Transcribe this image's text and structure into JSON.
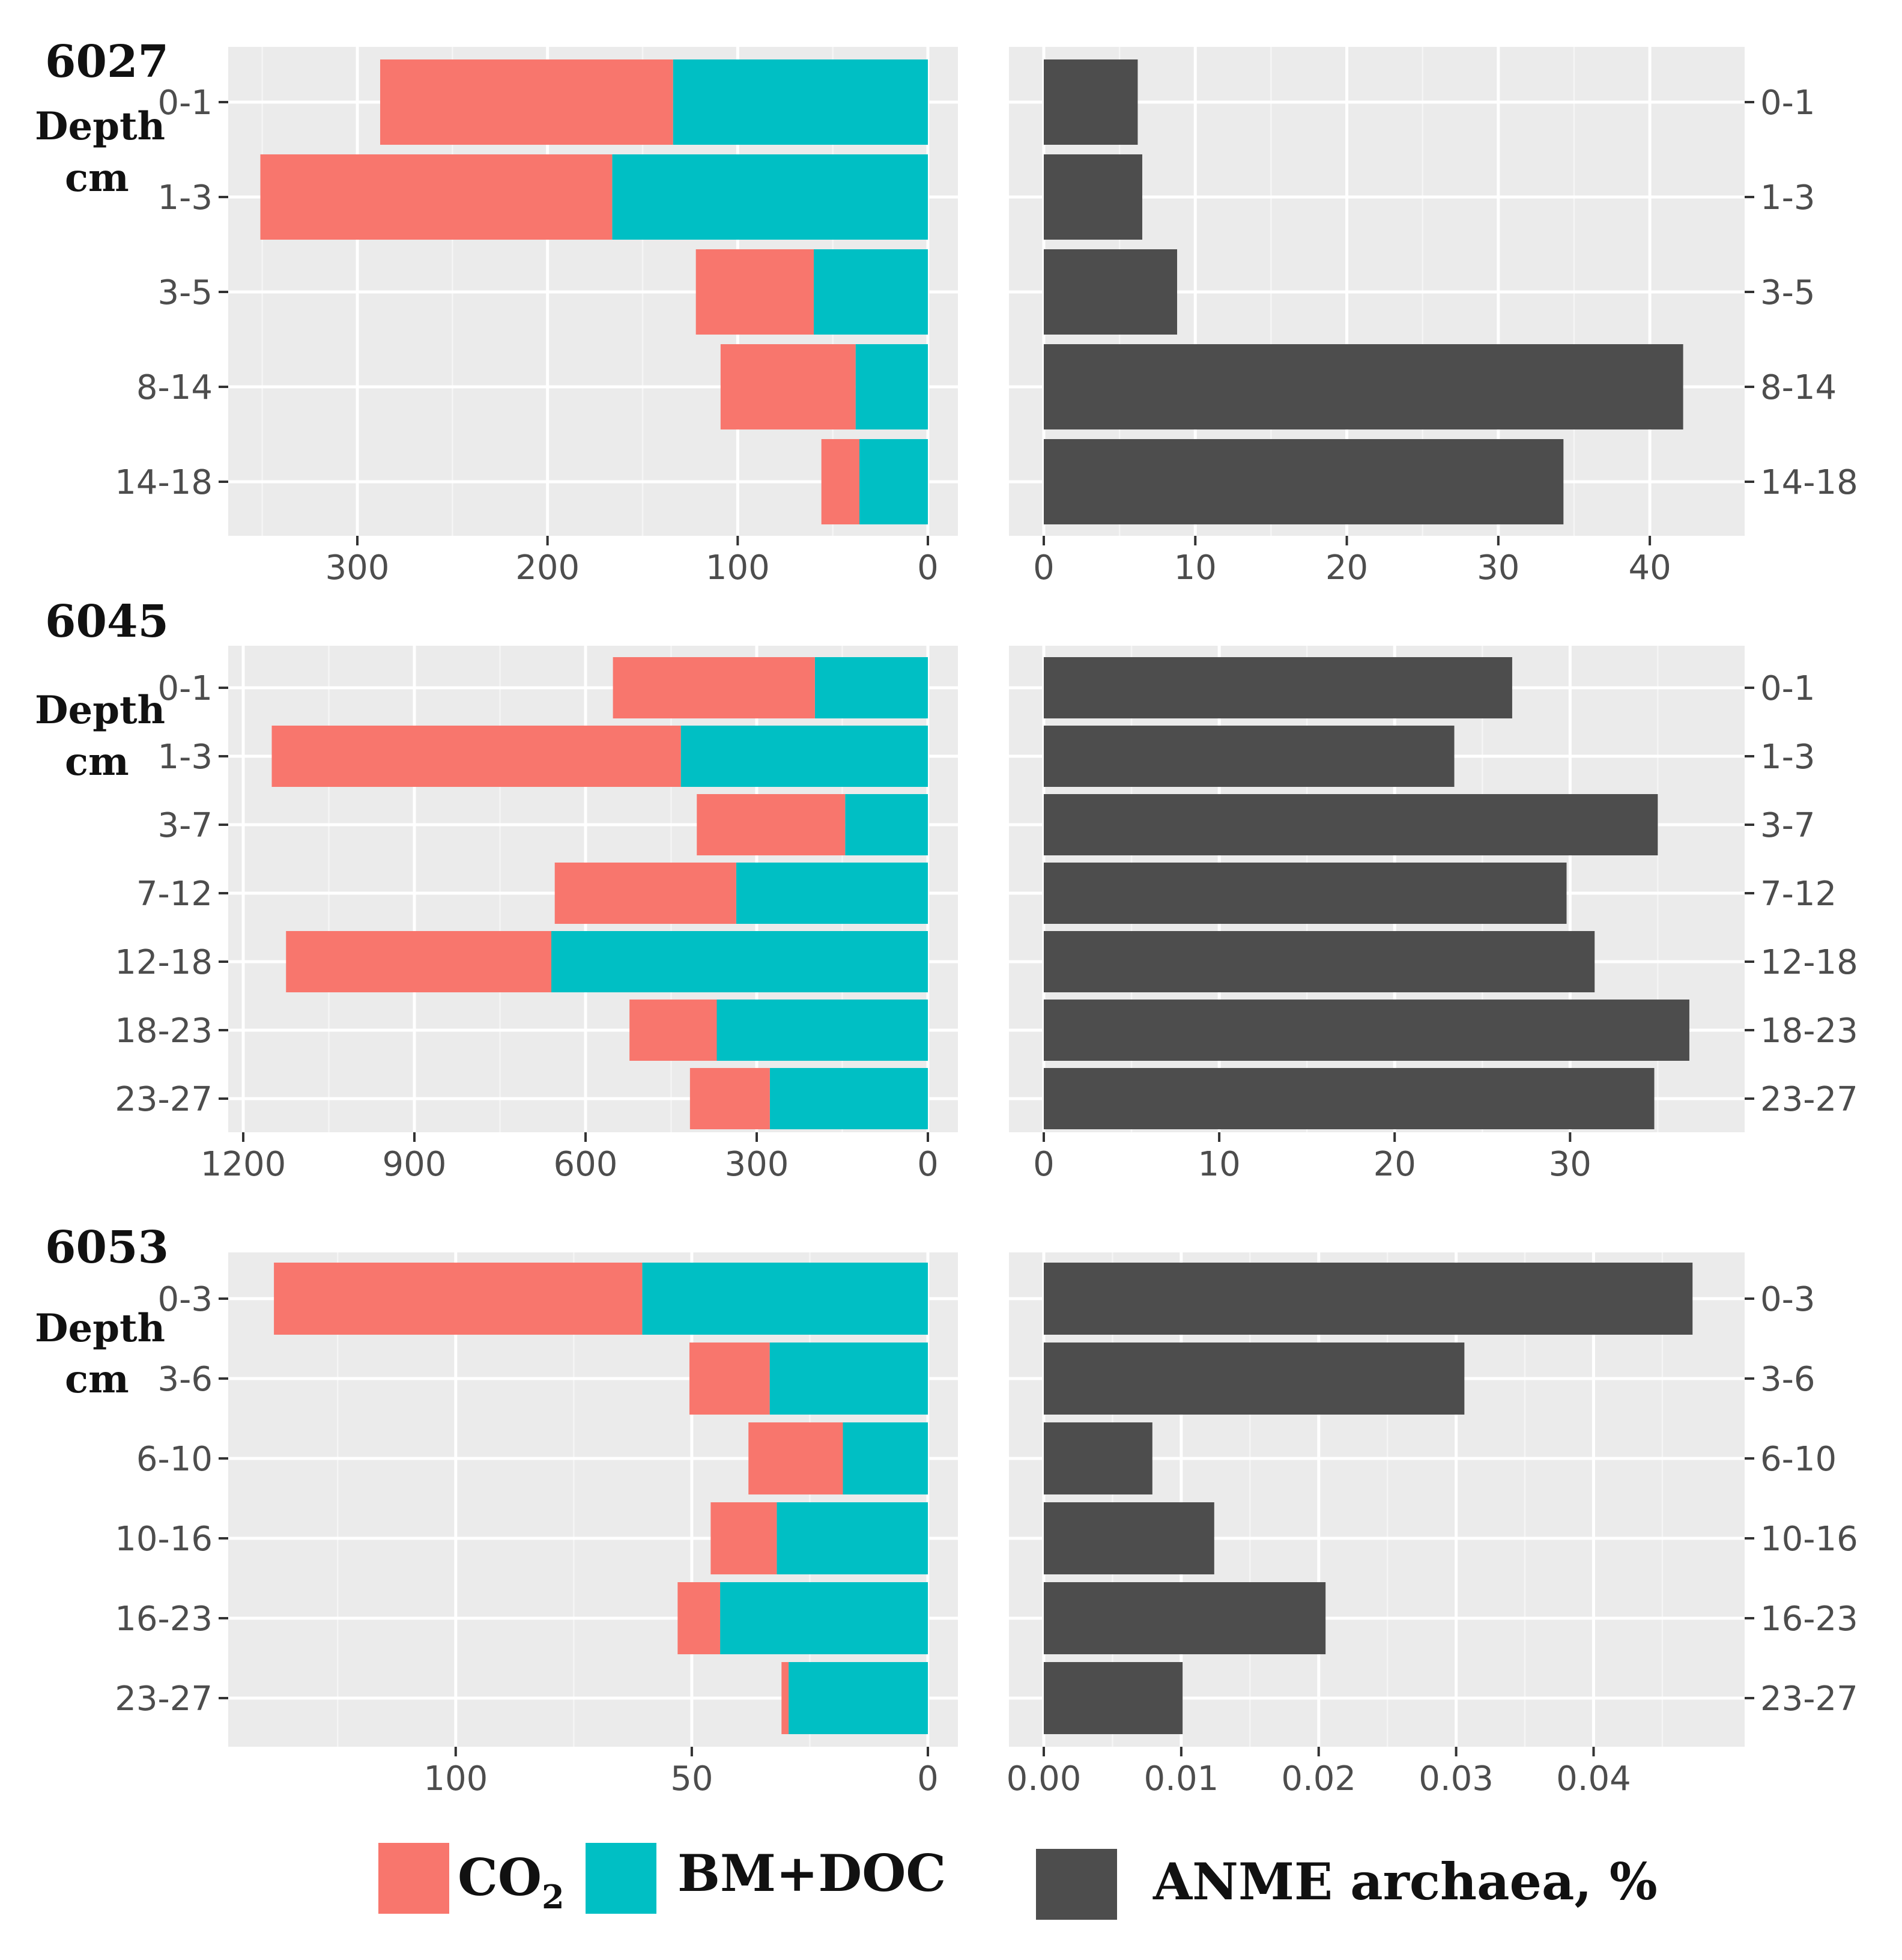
{
  "colors": {
    "co2": "#F8766D",
    "bm_doc": "#00BFC4",
    "anme": "#4D4D4D",
    "panel_bg": "#EBEBEB",
    "grid_major": "#FFFFFF",
    "grid_minor": "#F5F5F5"
  },
  "axis_labels": {
    "depth_line1": "Depth",
    "depth_line2": "cm"
  },
  "legend": {
    "co2_main": "CO",
    "co2_sub": "2",
    "bm_doc": "BM+DOC",
    "anme": "ANME archaea, %"
  },
  "chart_data": [
    {
      "type": "bar",
      "station": "6027",
      "categories": [
        "0-1",
        "1-3",
        "3-5",
        "8-14",
        "14-18"
      ],
      "left": {
        "orientation": "horizontal-reversed",
        "stacked": true,
        "xlim": [
          0,
          360
        ],
        "ticks": [
          300,
          200,
          100,
          0
        ],
        "minor_ticks": [
          350,
          250,
          150,
          50
        ],
        "series": [
          {
            "name": "BM+DOC",
            "values": [
              134,
              166,
              60,
              38,
              36
            ]
          },
          {
            "name": "CO2",
            "values": [
              154,
              185,
              62,
              71,
              20
            ]
          }
        ]
      },
      "right": {
        "orientation": "horizontal",
        "xlim": [
          0,
          44
        ],
        "ticks": [
          0,
          10,
          20,
          30,
          40
        ],
        "minor_ticks": [
          5,
          15,
          25,
          35
        ],
        "series": [
          {
            "name": "ANME archaea, %",
            "values": [
              6.2,
              6.5,
              8.8,
              42.2,
              34.3
            ]
          }
        ]
      }
    },
    {
      "type": "bar",
      "station": "6045",
      "categories": [
        "0-1",
        "1-3",
        "3-7",
        "7-12",
        "12-18",
        "18-23",
        "23-27"
      ],
      "left": {
        "orientation": "horizontal-reversed",
        "stacked": true,
        "xlim": [
          0,
          1200
        ],
        "ticks": [
          1200,
          900,
          600,
          300,
          0
        ],
        "minor_ticks": [
          1050,
          750,
          450,
          150
        ],
        "series": [
          {
            "name": "BM+DOC",
            "values": [
              198,
              433,
              145,
              336,
              660,
              370,
              277
            ]
          },
          {
            "name": "CO2",
            "values": [
              354,
              717,
              260,
              318,
              465,
              153,
              140
            ]
          }
        ]
      },
      "right": {
        "orientation": "horizontal",
        "xlim": [
          0,
          38
        ],
        "ticks": [
          0,
          10,
          20,
          30
        ],
        "minor_ticks": [
          5,
          15,
          25,
          35
        ],
        "series": [
          {
            "name": "ANME archaea, %",
            "values": [
              26.7,
              23.4,
              35.0,
              29.8,
              31.4,
              36.8,
              34.8
            ]
          }
        ]
      }
    },
    {
      "type": "bar",
      "station": "6053",
      "categories": [
        "0-3",
        "3-6",
        "6-10",
        "10-16",
        "16-23",
        "23-27"
      ],
      "left": {
        "orientation": "horizontal-reversed",
        "stacked": true,
        "xlim": [
          0,
          145
        ],
        "ticks": [
          100,
          50,
          0
        ],
        "minor_ticks": [
          125,
          75,
          25
        ],
        "series": [
          {
            "name": "BM+DOC",
            "values": [
              60.5,
              33.5,
              18,
              32,
              44,
              29.5
            ]
          },
          {
            "name": "CO2",
            "values": [
              78,
              17,
              20,
              14,
              9,
              1.5
            ]
          }
        ]
      },
      "right": {
        "orientation": "horizontal",
        "xlim": [
          0,
          0.0485
        ],
        "ticks": [
          0.0,
          0.01,
          0.02,
          0.03,
          0.04
        ],
        "tick_labels": [
          "0.00",
          "0.01",
          "0.02",
          "0.03",
          "0.04"
        ],
        "minor_ticks": [
          0.005,
          0.015,
          0.025,
          0.035,
          0.045
        ],
        "series": [
          {
            "name": "ANME archaea, %",
            "values": [
              0.0472,
              0.0306,
              0.0079,
              0.0124,
              0.0205,
              0.0101
            ]
          }
        ]
      }
    }
  ]
}
